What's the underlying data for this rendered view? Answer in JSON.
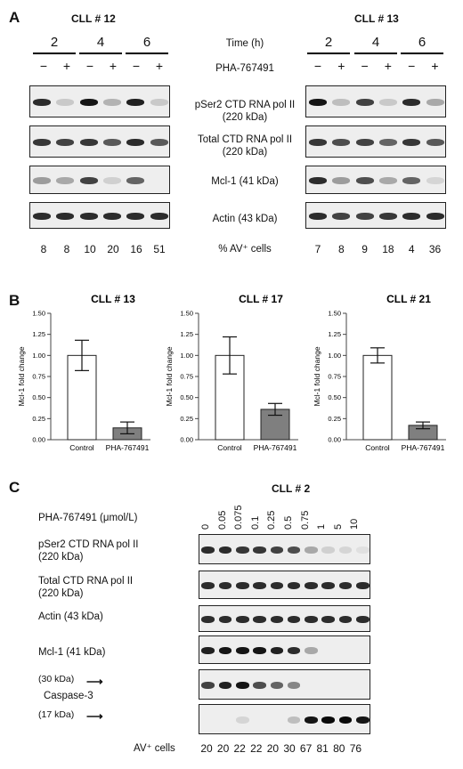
{
  "panelA": {
    "letter": "A",
    "left_title": "CLL # 12",
    "right_title": "CLL # 13",
    "time_label": "Time (h)",
    "drug_label": "PHA-767491",
    "times": [
      "2",
      "4",
      "6"
    ],
    "treat": [
      "−",
      "+"
    ],
    "rows": [
      {
        "line1": "pSer2 CTD RNA pol II",
        "line2": "(220 kDa)"
      },
      {
        "line1": "Total CTD RNA pol II",
        "line2": "(220 kDa)"
      },
      {
        "line1": "Mcl-1 (41 kDa)",
        "line2": ""
      },
      {
        "line1": "Actin (43 kDa)",
        "line2": ""
      }
    ],
    "av_label": "% AV⁺ cells",
    "left_av": [
      "8",
      "8",
      "10",
      "20",
      "16",
      "51"
    ],
    "right_av": [
      "7",
      "8",
      "9",
      "18",
      "4",
      "36"
    ]
  },
  "panelB": {
    "letter": "B",
    "ylabel": "Mcl-1 fold change",
    "yticks": [
      "0.00",
      "0.25",
      "0.50",
      "0.75",
      "1.00",
      "1.25",
      "1.50"
    ],
    "categories": [
      "Control",
      "PHA-767491"
    ]
  },
  "chart_data": [
    {
      "type": "bar",
      "title": "CLL # 13",
      "ylabel": "Mcl-1 fold change",
      "categories": [
        "Control",
        "PHA-767491"
      ],
      "values": [
        1.0,
        0.14
      ],
      "errors": [
        0.18,
        0.07
      ],
      "ylim": [
        0,
        1.5
      ],
      "colors": [
        "#ffffff",
        "#7f7f7f"
      ]
    },
    {
      "type": "bar",
      "title": "CLL # 17",
      "ylabel": "Mcl-1 fold change",
      "categories": [
        "Control",
        "PHA-767491"
      ],
      "values": [
        1.0,
        0.36
      ],
      "errors": [
        0.22,
        0.07
      ],
      "ylim": [
        0,
        1.5
      ],
      "colors": [
        "#ffffff",
        "#7f7f7f"
      ]
    },
    {
      "type": "bar",
      "title": "CLL # 21",
      "ylabel": "Mcl-1 fold change",
      "categories": [
        "Control",
        "PHA-767491"
      ],
      "values": [
        1.0,
        0.17
      ],
      "errors": [
        0.09,
        0.04
      ],
      "ylim": [
        0,
        1.5
      ],
      "colors": [
        "#ffffff",
        "#7f7f7f"
      ]
    }
  ],
  "panelC": {
    "letter": "C",
    "title": "CLL # 2",
    "conc_label": "PHA-767491 (μmol/L)",
    "concentrations": [
      "0",
      "0.05",
      "0.075",
      "0.1",
      "0.25",
      "0.5",
      "0.75",
      "1",
      "5",
      "10"
    ],
    "rows": [
      {
        "line1": "pSer2 CTD RNA pol II",
        "line2": "(220 kDa)"
      },
      {
        "line1": "Total CTD RNA pol II",
        "line2": "(220 kDa)"
      },
      {
        "line1": "Actin (43 kDa)",
        "line2": ""
      },
      {
        "line1": "Mcl-1 (41 kDa)",
        "line2": ""
      }
    ],
    "casp_30": "(30 kDa)",
    "casp_label": "Caspase-3",
    "casp_17": "(17 kDa)",
    "av_label": "AV⁺ cells",
    "av_values": [
      "20",
      "20",
      "22",
      "22",
      "20",
      "30",
      "67",
      "81",
      "80",
      "76"
    ]
  },
  "blot_intensity": {
    "A_left": [
      [
        0.85,
        0.15,
        0.95,
        0.25,
        0.9,
        0.15
      ],
      [
        0.8,
        0.75,
        0.8,
        0.65,
        0.85,
        0.65
      ],
      [
        0.35,
        0.3,
        0.75,
        0.12,
        0.6,
        0.0
      ],
      [
        0.85,
        0.85,
        0.85,
        0.85,
        0.85,
        0.85
      ]
    ],
    "A_right": [
      [
        0.95,
        0.2,
        0.75,
        0.15,
        0.85,
        0.3
      ],
      [
        0.8,
        0.7,
        0.75,
        0.6,
        0.8,
        0.65
      ],
      [
        0.85,
        0.35,
        0.7,
        0.3,
        0.6,
        0.1
      ],
      [
        0.85,
        0.75,
        0.75,
        0.8,
        0.85,
        0.85
      ]
    ],
    "C": [
      [
        0.85,
        0.85,
        0.8,
        0.8,
        0.75,
        0.7,
        0.3,
        0.12,
        0.1,
        0.05
      ],
      [
        0.85,
        0.85,
        0.85,
        0.85,
        0.85,
        0.85,
        0.85,
        0.85,
        0.85,
        0.85
      ],
      [
        0.85,
        0.85,
        0.85,
        0.85,
        0.85,
        0.85,
        0.85,
        0.85,
        0.85,
        0.85
      ],
      [
        0.9,
        0.95,
        0.95,
        0.95,
        0.9,
        0.85,
        0.3,
        0.0,
        0.0,
        0.0
      ],
      [
        0.75,
        0.9,
        0.95,
        0.7,
        0.6,
        0.45,
        0.0,
        0.0,
        0.0,
        0.0
      ],
      [
        0.0,
        0.0,
        0.1,
        0.0,
        0.0,
        0.2,
        0.95,
        1.0,
        1.0,
        0.95
      ]
    ]
  }
}
